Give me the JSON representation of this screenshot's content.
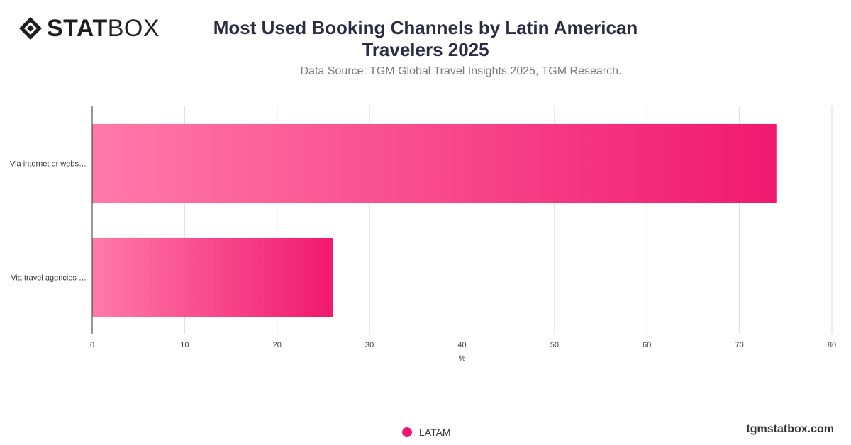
{
  "header": {
    "logo_text_bold": "STAT",
    "logo_text_light": "BOX",
    "title_line1": "Most Used Booking Channels by Latin American",
    "title_line2": "Travelers 2025",
    "subtitle": "Data Source: TGM Global Travel Insights 2025, TGM Research."
  },
  "chart_data": {
    "type": "bar",
    "orientation": "horizontal",
    "categories": [
      "Via internet or webs…",
      "Via travel agencies …"
    ],
    "series": [
      {
        "name": "LATAM",
        "values": [
          74,
          26
        ]
      }
    ],
    "xlabel": "%",
    "ylabel": "",
    "xlim": [
      0,
      80
    ],
    "xticks": [
      "0",
      "10",
      "20",
      "30",
      "40",
      "50",
      "60",
      "70",
      "80"
    ],
    "grid": true,
    "legend_position": "bottom",
    "bar_gradient": [
      "#ff7aa8",
      "#f0196f"
    ]
  },
  "legend": {
    "label": "LATAM",
    "color": "#f0196f"
  },
  "footer": {
    "site": "tgmstatbox.com"
  }
}
